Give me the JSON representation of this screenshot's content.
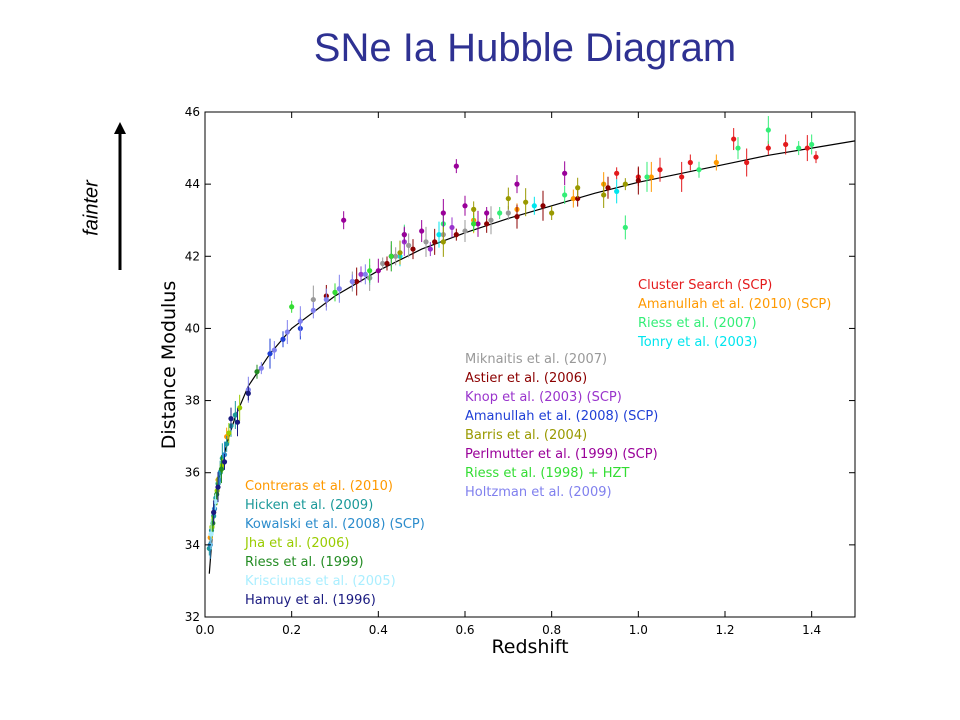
{
  "slide": {
    "title": "SNe Ia Hubble Diagram",
    "annotation": "fainter",
    "title_color": "#2e3192"
  },
  "chart_data": {
    "type": "scatter",
    "xlabel": "Redshift",
    "ylabel": "Distance Modulus",
    "xlim": [
      0.0,
      1.5
    ],
    "ylim": [
      32,
      46
    ],
    "x_ticks": [
      0.0,
      0.2,
      0.4,
      0.6,
      0.8,
      1.0,
      1.2,
      1.4
    ],
    "y_ticks": [
      32,
      34,
      36,
      38,
      40,
      42,
      44,
      46
    ],
    "grid": false,
    "legend_placement": "three groups inside plot: lower-left, center, right",
    "model_curve": {
      "z": [
        0.01,
        0.02,
        0.03,
        0.05,
        0.07,
        0.1,
        0.15,
        0.2,
        0.3,
        0.4,
        0.5,
        0.6,
        0.7,
        0.8,
        0.9,
        1.0,
        1.1,
        1.2,
        1.3,
        1.4,
        1.5
      ],
      "mu": [
        33.2,
        34.8,
        35.7,
        36.8,
        37.55,
        38.4,
        39.3,
        40.0,
        40.9,
        41.6,
        42.2,
        42.65,
        43.05,
        43.4,
        43.75,
        44.05,
        44.3,
        44.55,
        44.8,
        45.0,
        45.2
      ]
    },
    "series": [
      {
        "name": "Cluster Search (SCP)",
        "color": "#e31a1c",
        "group": "right",
        "points": [
          [
            0.95,
            44.3
          ],
          [
            1.0,
            44.2
          ],
          [
            1.05,
            44.4
          ],
          [
            1.1,
            44.2
          ],
          [
            1.12,
            44.6
          ],
          [
            1.22,
            45.25
          ],
          [
            1.25,
            44.6
          ],
          [
            1.3,
            45.0
          ],
          [
            1.34,
            45.1
          ],
          [
            1.39,
            45.0
          ],
          [
            1.41,
            44.75
          ]
        ]
      },
      {
        "name": "Amanullah et al. (2010) (SCP)",
        "color": "#ff9900",
        "group": "right",
        "points": [
          [
            0.62,
            43.0
          ],
          [
            0.72,
            43.3
          ],
          [
            0.85,
            43.6
          ],
          [
            0.92,
            44.0
          ],
          [
            1.03,
            44.2
          ],
          [
            1.18,
            44.6
          ]
        ]
      },
      {
        "name": "Riess et al. (2007)",
        "color": "#33ee77",
        "group": "right",
        "points": [
          [
            0.46,
            42.6
          ],
          [
            0.55,
            42.9
          ],
          [
            0.68,
            43.2
          ],
          [
            0.83,
            43.7
          ],
          [
            0.97,
            42.8
          ],
          [
            1.02,
            44.2
          ],
          [
            1.14,
            44.4
          ],
          [
            1.23,
            45.0
          ],
          [
            1.3,
            45.5
          ],
          [
            1.37,
            45.0
          ],
          [
            1.4,
            45.1
          ]
        ]
      },
      {
        "name": "Tonry et al. (2003)",
        "color": "#00e5ee",
        "group": "right",
        "points": [
          [
            0.38,
            41.4
          ],
          [
            0.45,
            42.0
          ],
          [
            0.54,
            42.6
          ],
          [
            0.62,
            42.9
          ],
          [
            0.76,
            43.4
          ],
          [
            0.95,
            43.8
          ]
        ]
      },
      {
        "name": "Miknaitis et al. (2007)",
        "color": "#999999",
        "group": "center",
        "points": [
          [
            0.25,
            40.8
          ],
          [
            0.3,
            41.0
          ],
          [
            0.34,
            41.3
          ],
          [
            0.38,
            41.4
          ],
          [
            0.41,
            41.8
          ],
          [
            0.44,
            42.0
          ],
          [
            0.47,
            42.3
          ],
          [
            0.51,
            42.4
          ],
          [
            0.55,
            42.6
          ],
          [
            0.6,
            42.7
          ],
          [
            0.66,
            43.0
          ],
          [
            0.7,
            43.2
          ]
        ]
      },
      {
        "name": "Astier et al. (2006)",
        "color": "#8b0000",
        "group": "center",
        "points": [
          [
            0.28,
            40.9
          ],
          [
            0.35,
            41.3
          ],
          [
            0.42,
            41.8
          ],
          [
            0.48,
            42.2
          ],
          [
            0.53,
            42.4
          ],
          [
            0.58,
            42.6
          ],
          [
            0.65,
            42.9
          ],
          [
            0.72,
            43.1
          ],
          [
            0.78,
            43.4
          ],
          [
            0.86,
            43.6
          ],
          [
            0.93,
            43.9
          ],
          [
            1.0,
            44.1
          ]
        ]
      },
      {
        "name": "Knop et al. (2003) (SCP)",
        "color": "#9933cc",
        "group": "center",
        "points": [
          [
            0.36,
            41.5
          ],
          [
            0.43,
            42.0
          ],
          [
            0.46,
            42.4
          ],
          [
            0.52,
            42.2
          ],
          [
            0.57,
            42.8
          ]
        ]
      },
      {
        "name": "Amanullah et al. (2008) (SCP)",
        "color": "#1f3fd6",
        "group": "center",
        "points": [
          [
            0.15,
            39.3
          ],
          [
            0.18,
            39.7
          ],
          [
            0.22,
            40.0
          ]
        ]
      },
      {
        "name": "Barris et al. (2004)",
        "color": "#999900",
        "group": "center",
        "points": [
          [
            0.45,
            42.1
          ],
          [
            0.55,
            42.4
          ],
          [
            0.62,
            43.3
          ],
          [
            0.7,
            43.6
          ],
          [
            0.74,
            43.5
          ],
          [
            0.8,
            43.2
          ],
          [
            0.86,
            43.9
          ],
          [
            0.92,
            43.7
          ],
          [
            0.97,
            44.0
          ]
        ]
      },
      {
        "name": "Perlmutter et al. (1999) (SCP)",
        "color": "#990099",
        "group": "center",
        "points": [
          [
            0.32,
            43.0
          ],
          [
            0.4,
            41.6
          ],
          [
            0.43,
            42.0
          ],
          [
            0.46,
            42.6
          ],
          [
            0.5,
            42.7
          ],
          [
            0.55,
            43.2
          ],
          [
            0.58,
            44.5
          ],
          [
            0.6,
            43.4
          ],
          [
            0.63,
            42.9
          ],
          [
            0.65,
            43.2
          ],
          [
            0.72,
            44.0
          ],
          [
            0.83,
            44.3
          ]
        ]
      },
      {
        "name": "Riess et al. (1998) + HZT",
        "color": "#33dd33",
        "group": "center",
        "points": [
          [
            0.2,
            40.6
          ],
          [
            0.3,
            41.0
          ],
          [
            0.38,
            41.6
          ],
          [
            0.43,
            42.0
          ],
          [
            0.62,
            42.9
          ]
        ]
      },
      {
        "name": "Holtzman et al. (2009)",
        "color": "#8080ee",
        "group": "center",
        "points": [
          [
            0.1,
            38.3
          ],
          [
            0.13,
            38.9
          ],
          [
            0.16,
            39.4
          ],
          [
            0.19,
            39.9
          ],
          [
            0.22,
            40.2
          ],
          [
            0.25,
            40.5
          ],
          [
            0.28,
            40.8
          ],
          [
            0.31,
            41.1
          ],
          [
            0.34,
            41.3
          ],
          [
            0.37,
            41.5
          ]
        ]
      },
      {
        "name": "Contreras et al. (2010)",
        "color": "#ff9900",
        "group": "left",
        "points": [
          [
            0.012,
            34.2
          ],
          [
            0.02,
            34.9
          ],
          [
            0.03,
            35.8
          ],
          [
            0.05,
            37.0
          ]
        ]
      },
      {
        "name": "Hicken et al. (2009)",
        "color": "#1a9999",
        "group": "left",
        "points": [
          [
            0.01,
            33.9
          ],
          [
            0.015,
            34.4
          ],
          [
            0.02,
            34.8
          ],
          [
            0.025,
            35.3
          ],
          [
            0.03,
            35.7
          ],
          [
            0.035,
            36.0
          ],
          [
            0.04,
            36.4
          ],
          [
            0.05,
            36.8
          ],
          [
            0.06,
            37.3
          ],
          [
            0.07,
            37.6
          ]
        ]
      },
      {
        "name": "Kowalski et al. (2008) (SCP)",
        "color": "#2b8ccc",
        "group": "left",
        "points": [
          [
            0.012,
            34.0
          ],
          [
            0.022,
            35.0
          ],
          [
            0.032,
            35.8
          ],
          [
            0.045,
            36.5
          ]
        ]
      },
      {
        "name": "Jha et al. (2006)",
        "color": "#99cc00",
        "group": "left",
        "points": [
          [
            0.016,
            34.5
          ],
          [
            0.028,
            35.5
          ],
          [
            0.04,
            36.2
          ],
          [
            0.055,
            37.1
          ],
          [
            0.08,
            37.8
          ]
        ]
      },
      {
        "name": "Riess et al. (1999)",
        "color": "#228b22",
        "group": "left",
        "points": [
          [
            0.018,
            34.6
          ],
          [
            0.027,
            35.4
          ],
          [
            0.038,
            36.1
          ],
          [
            0.12,
            38.8
          ]
        ]
      },
      {
        "name": "Krisciunas et al. (2005)",
        "color": "#aaeeff",
        "group": "left",
        "points": [
          [
            0.014,
            34.3
          ],
          [
            0.024,
            35.2
          ]
        ]
      },
      {
        "name": "Hamuy et al. (1996)",
        "color": "#1a1a80",
        "group": "left",
        "points": [
          [
            0.02,
            34.9
          ],
          [
            0.03,
            35.6
          ],
          [
            0.045,
            36.3
          ],
          [
            0.06,
            37.5
          ],
          [
            0.075,
            37.4
          ],
          [
            0.1,
            38.2
          ]
        ]
      }
    ]
  }
}
